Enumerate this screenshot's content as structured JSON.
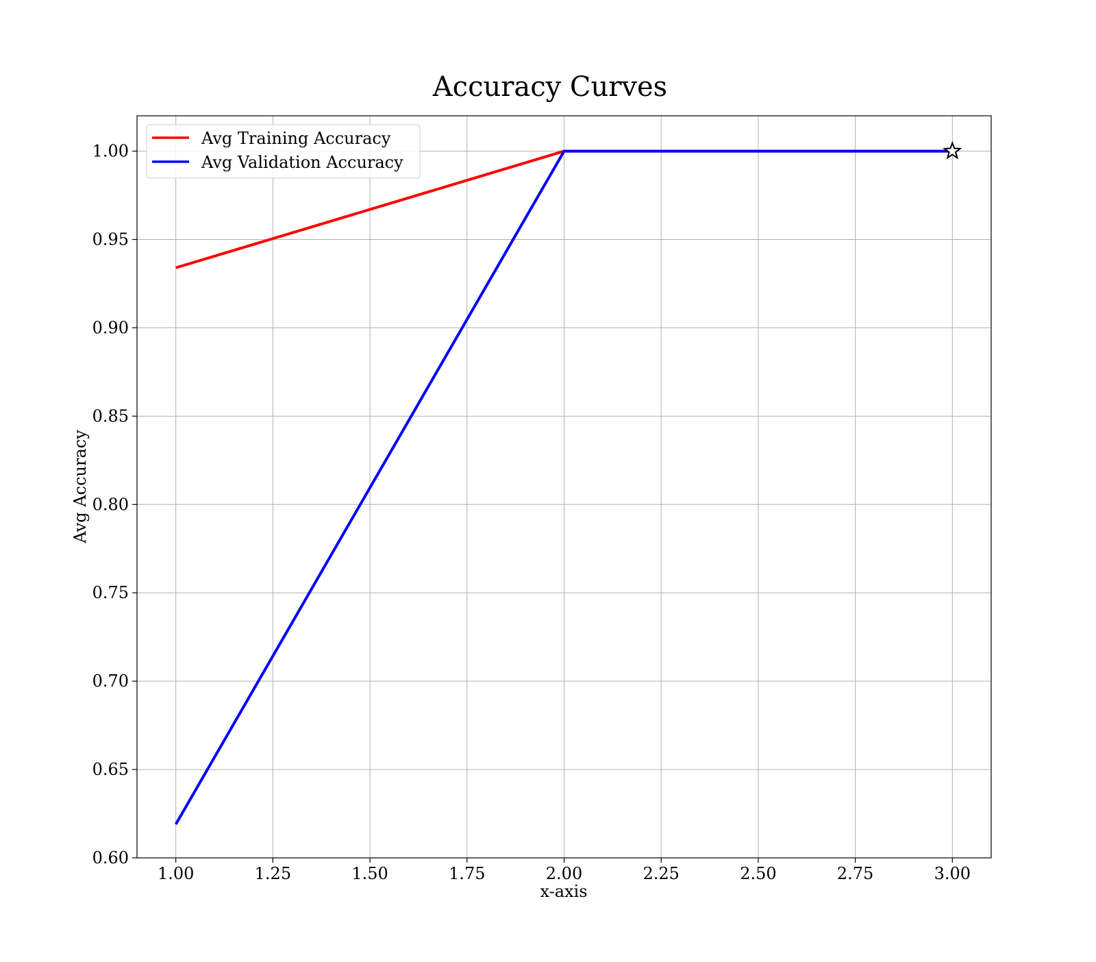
{
  "chart_data": {
    "type": "line",
    "title": "Accuracy Curves",
    "xlabel": "x-axis",
    "ylabel": "Avg Accuracy",
    "xlim": [
      0.9,
      3.1
    ],
    "ylim": [
      0.6,
      1.02
    ],
    "xticks": [
      1.0,
      1.25,
      1.5,
      1.75,
      2.0,
      2.25,
      2.5,
      2.75,
      3.0
    ],
    "xtick_labels": [
      "1.00",
      "1.25",
      "1.50",
      "1.75",
      "2.00",
      "2.25",
      "2.50",
      "2.75",
      "3.00"
    ],
    "yticks": [
      0.6,
      0.65,
      0.7,
      0.75,
      0.8,
      0.85,
      0.9,
      0.95,
      1.0
    ],
    "ytick_labels": [
      "0.60",
      "0.65",
      "0.70",
      "0.75",
      "0.80",
      "0.85",
      "0.90",
      "0.95",
      "1.00"
    ],
    "grid": true,
    "legend_position": "top-left",
    "x": [
      1,
      2,
      3
    ],
    "series": [
      {
        "name": "Avg Training Accuracy",
        "color": "#ff0000",
        "values": [
          0.934,
          1.0,
          1.0
        ]
      },
      {
        "name": "Avg Validation Accuracy",
        "color": "#0000ff",
        "values": [
          0.619,
          1.0,
          1.0
        ]
      }
    ],
    "marker": {
      "shape": "star",
      "x": 3,
      "y": 1.0,
      "color": "#000000"
    }
  }
}
